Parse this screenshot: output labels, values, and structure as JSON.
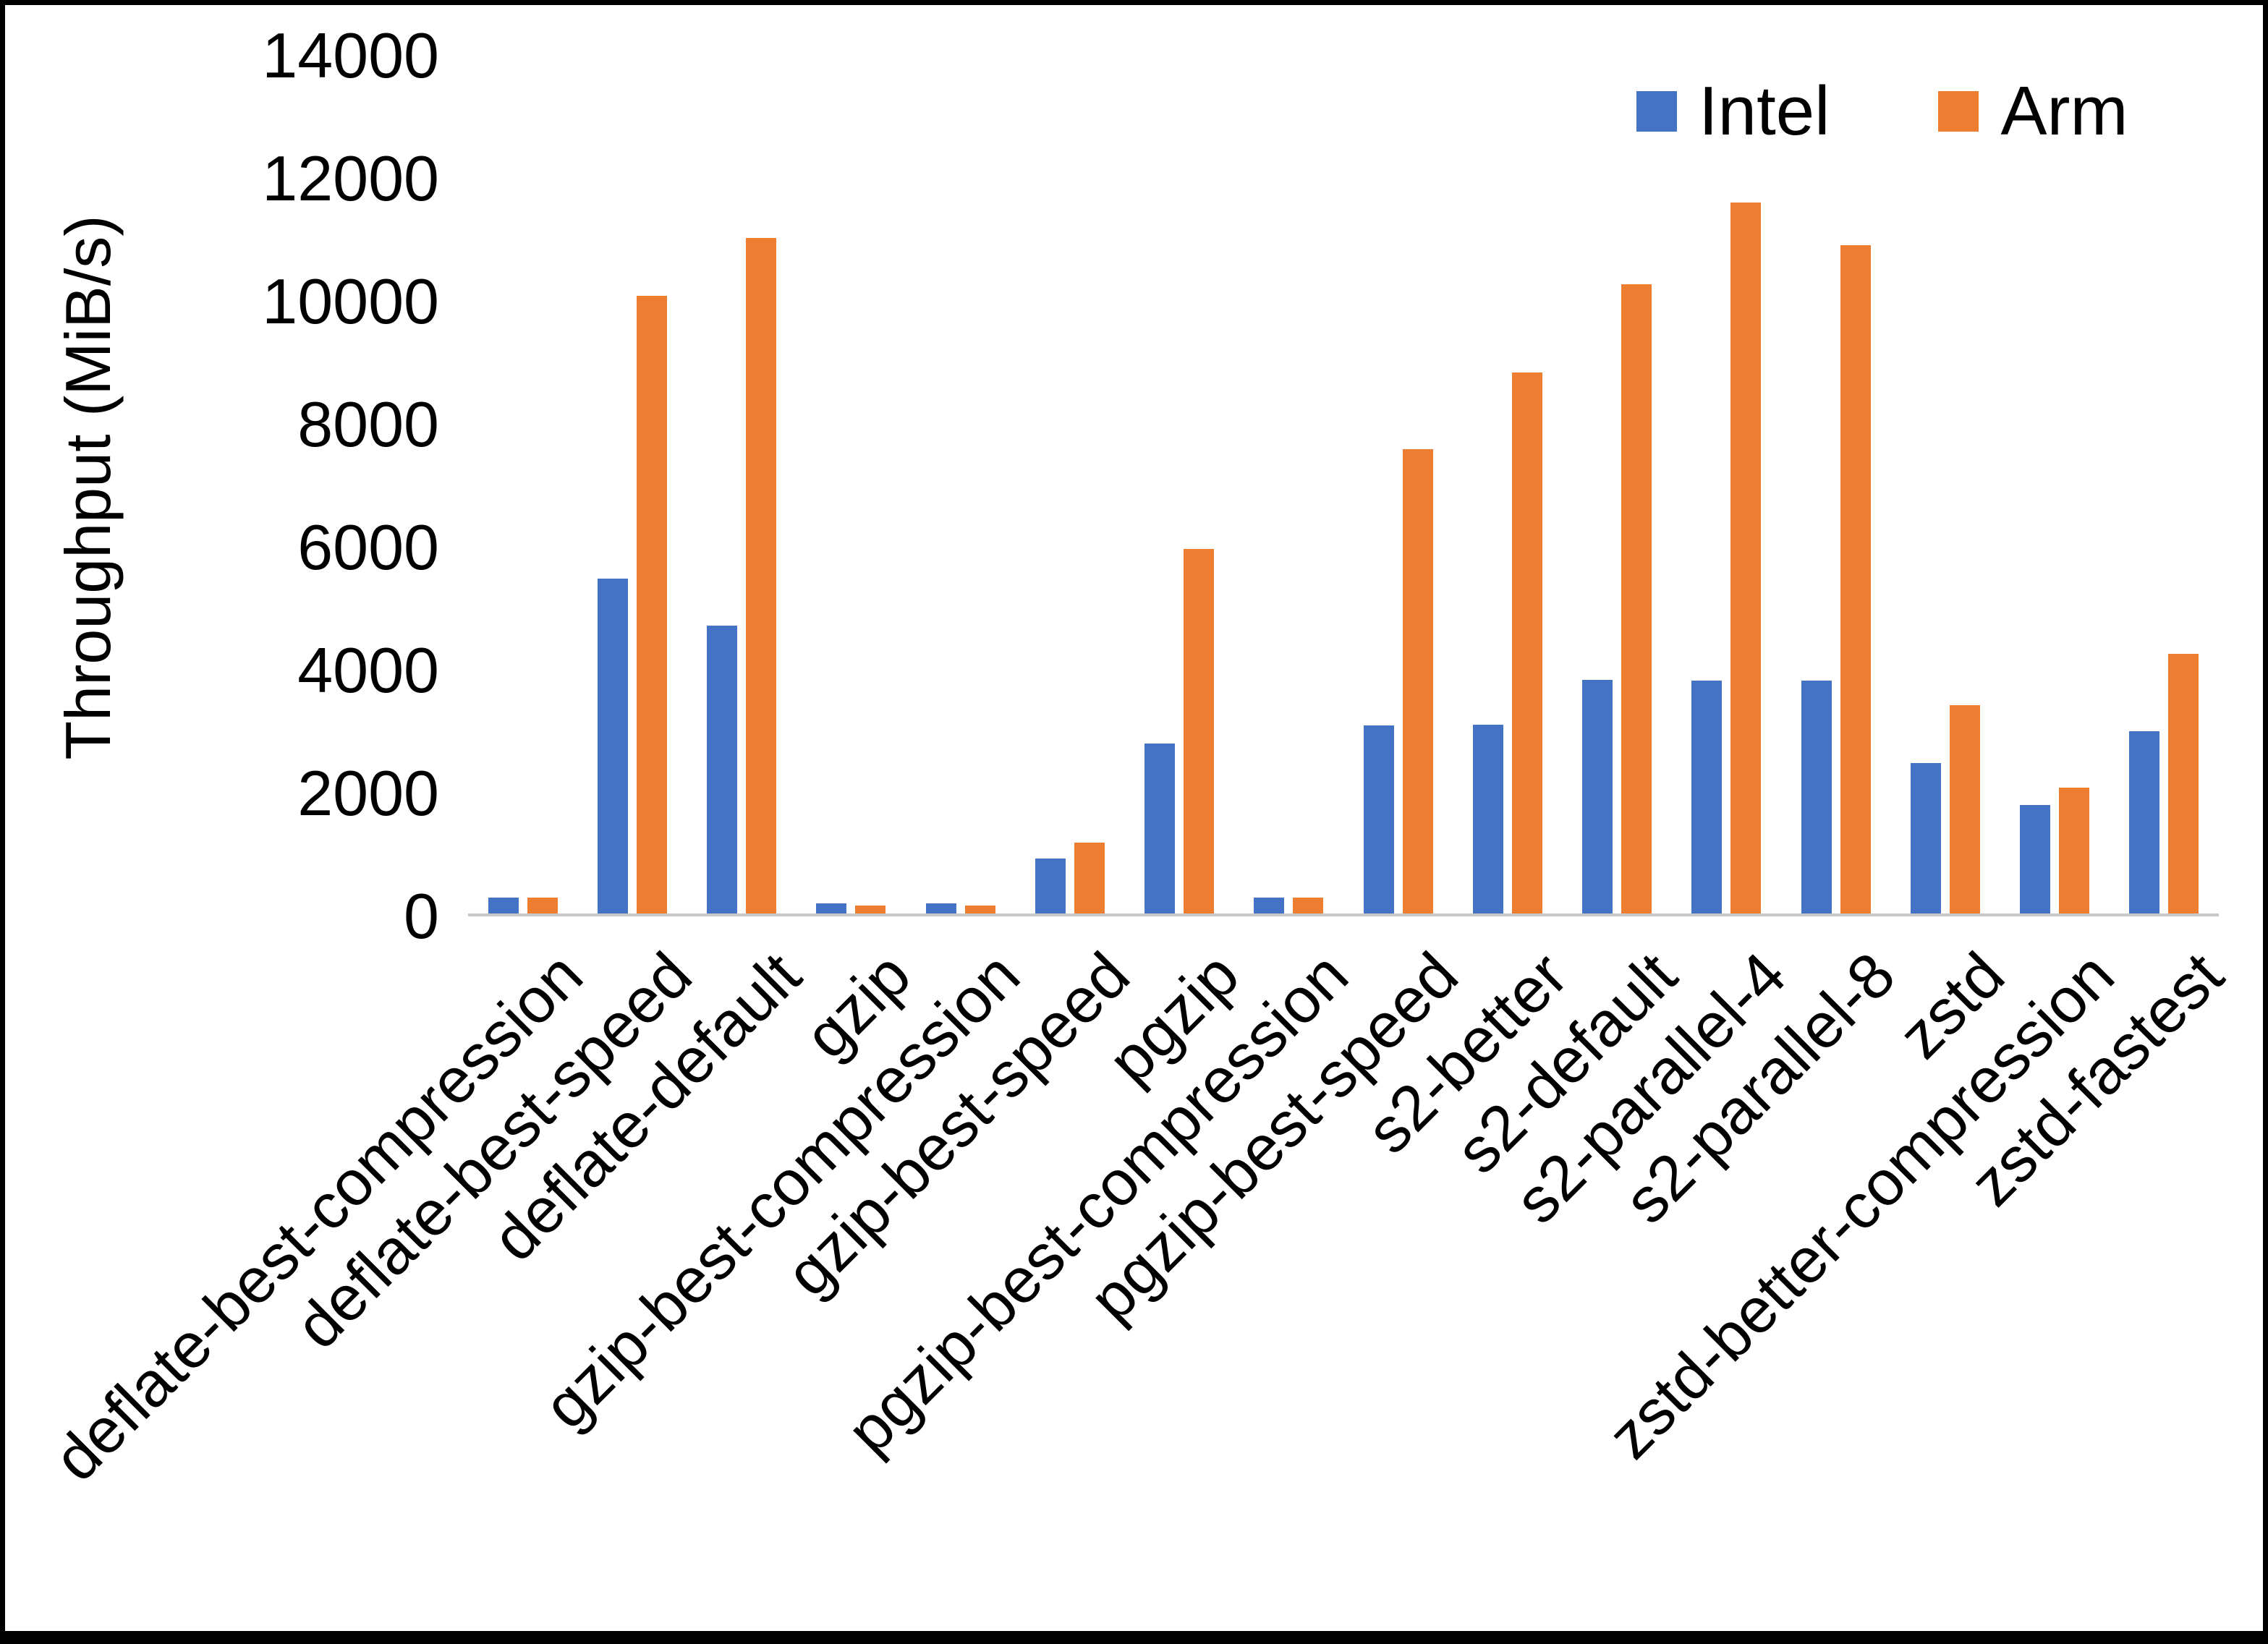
{
  "chart_data": {
    "type": "bar",
    "title": "",
    "ylabel": "Throughput (MiB/s)",
    "xlabel": "",
    "ylim": [
      0,
      14000
    ],
    "ytick_step": 2000,
    "grid": false,
    "legend_position": "top-right",
    "categories": [
      "deflate-best-compression",
      "deflate-best-speed",
      "deflate-default",
      "gzip",
      "gzip-best-compression",
      "gzip-best-speed",
      "pgzip",
      "pgzip-best-compression",
      "pgzip-best-speed",
      "s2-better",
      "s2-default",
      "s2-parallel-4",
      "s2-parallel-8",
      "zstd",
      "zstd-better-compression",
      "zstd-fastest"
    ],
    "series": [
      {
        "name": "Intel",
        "color": "#4472C4",
        "values": [
          260,
          5450,
          4680,
          160,
          160,
          900,
          2760,
          260,
          3060,
          3070,
          3800,
          3790,
          3790,
          2450,
          1760,
          2960
        ]
      },
      {
        "name": "Arm",
        "color": "#ED7D31",
        "values": [
          260,
          10050,
          10990,
          130,
          130,
          1150,
          5930,
          260,
          7550,
          8800,
          10230,
          11560,
          10870,
          3390,
          2050,
          4220
        ]
      }
    ]
  }
}
